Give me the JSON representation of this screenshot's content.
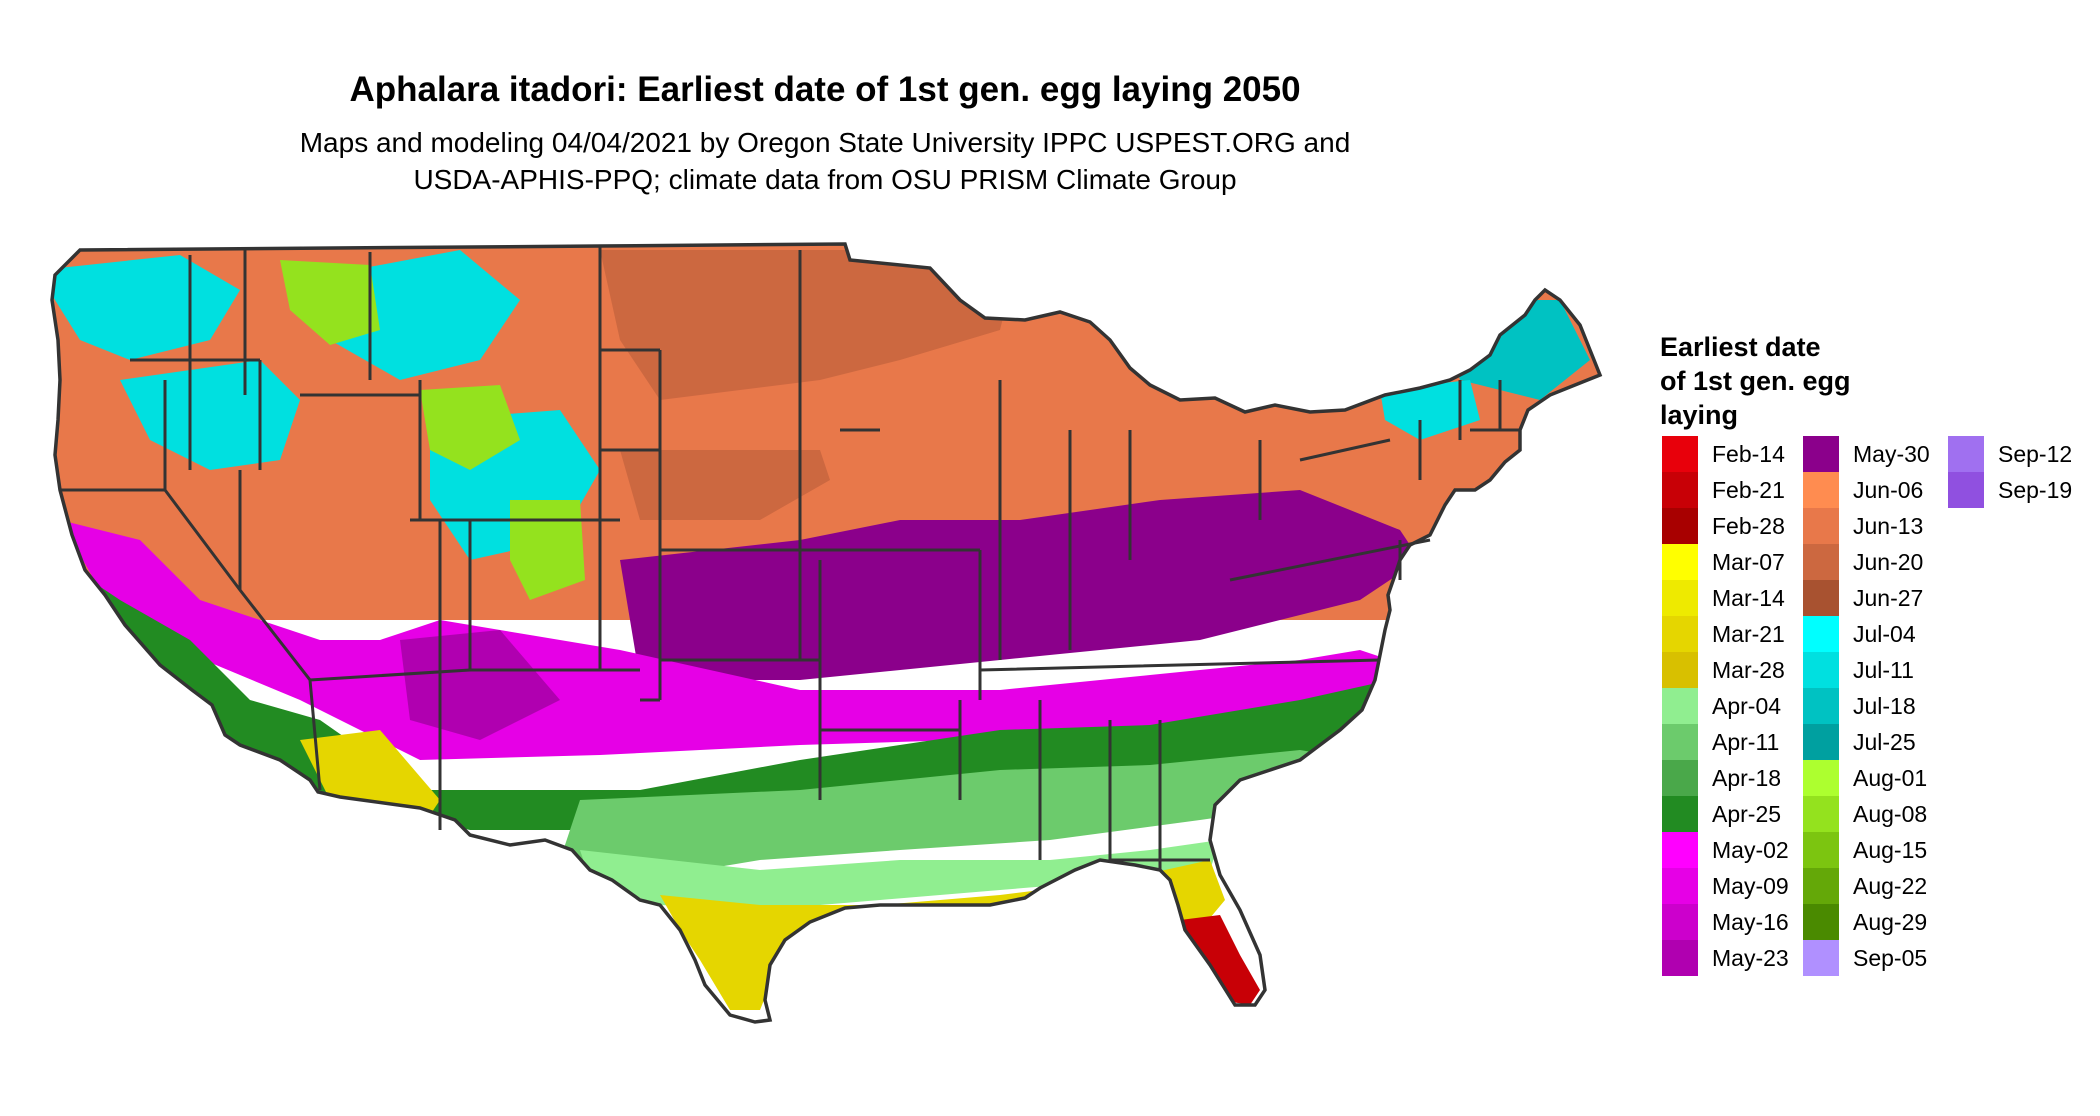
{
  "title": "Aphalara itadori: Earliest date of 1st gen. egg laying 2050",
  "subtitle_line1": "Maps and modeling 04/04/2021 by Oregon State University IPPC USPEST.ORG and",
  "subtitle_line2": "USDA-APHIS-PPQ; climate data from OSU PRISM Climate Group",
  "legend": {
    "title_lines": [
      "Earliest date",
      "of 1st gen. egg",
      "laying"
    ],
    "items": [
      {
        "label": "Feb-14",
        "color": "#e8000b"
      },
      {
        "label": "Feb-21",
        "color": "#c80006"
      },
      {
        "label": "Feb-28",
        "color": "#a80000"
      },
      {
        "label": "Mar-07",
        "color": "#ffff00"
      },
      {
        "label": "Mar-14",
        "color": "#eeea00"
      },
      {
        "label": "Mar-21",
        "color": "#e5d600"
      },
      {
        "label": "Mar-28",
        "color": "#d8c000"
      },
      {
        "label": "Apr-04",
        "color": "#90ee90"
      },
      {
        "label": "Apr-11",
        "color": "#6ccb6c"
      },
      {
        "label": "Apr-18",
        "color": "#4aa84a"
      },
      {
        "label": "Apr-25",
        "color": "#228b22"
      },
      {
        "label": "May-02",
        "color": "#ff00ff"
      },
      {
        "label": "May-09",
        "color": "#e600e6"
      },
      {
        "label": "May-16",
        "color": "#cc00cc"
      },
      {
        "label": "May-23",
        "color": "#b000b0"
      },
      {
        "label": "May-30",
        "color": "#8b008b"
      },
      {
        "label": "Jun-06",
        "color": "#ff8c50"
      },
      {
        "label": "Jun-13",
        "color": "#e8784a"
      },
      {
        "label": "Jun-20",
        "color": "#cc6840"
      },
      {
        "label": "Jun-27",
        "color": "#a85230"
      },
      {
        "label": "Jul-04",
        "color": "#00ffff"
      },
      {
        "label": "Jul-11",
        "color": "#00e0e0"
      },
      {
        "label": "Jul-18",
        "color": "#00c2c2"
      },
      {
        "label": "Jul-25",
        "color": "#00a0a0"
      },
      {
        "label": "Aug-01",
        "color": "#adff2f"
      },
      {
        "label": "Aug-08",
        "color": "#94e21e"
      },
      {
        "label": "Aug-15",
        "color": "#7cc510"
      },
      {
        "label": "Aug-22",
        "color": "#64a808"
      },
      {
        "label": "Aug-29",
        "color": "#4a8a00"
      },
      {
        "label": "Sep-05",
        "color": "#b090ff"
      },
      {
        "label": "Sep-12",
        "color": "#a070f0"
      },
      {
        "label": "Sep-19",
        "color": "#9050e0"
      }
    ]
  },
  "map_colors": {
    "orange": "#e8784a",
    "orange_dark": "#cc6840",
    "cyan": "#00e0e0",
    "cyan_dark": "#00c2c2",
    "yellowgreen": "#94e21e",
    "magenta": "#e600e6",
    "magenta_dark": "#b000b0",
    "purple": "#8b008b",
    "green": "#6ccb6c",
    "green_dark": "#228b22",
    "lightgreen": "#90ee90",
    "yellow": "#e5d600",
    "red": "#c80006",
    "border": "#333333"
  }
}
